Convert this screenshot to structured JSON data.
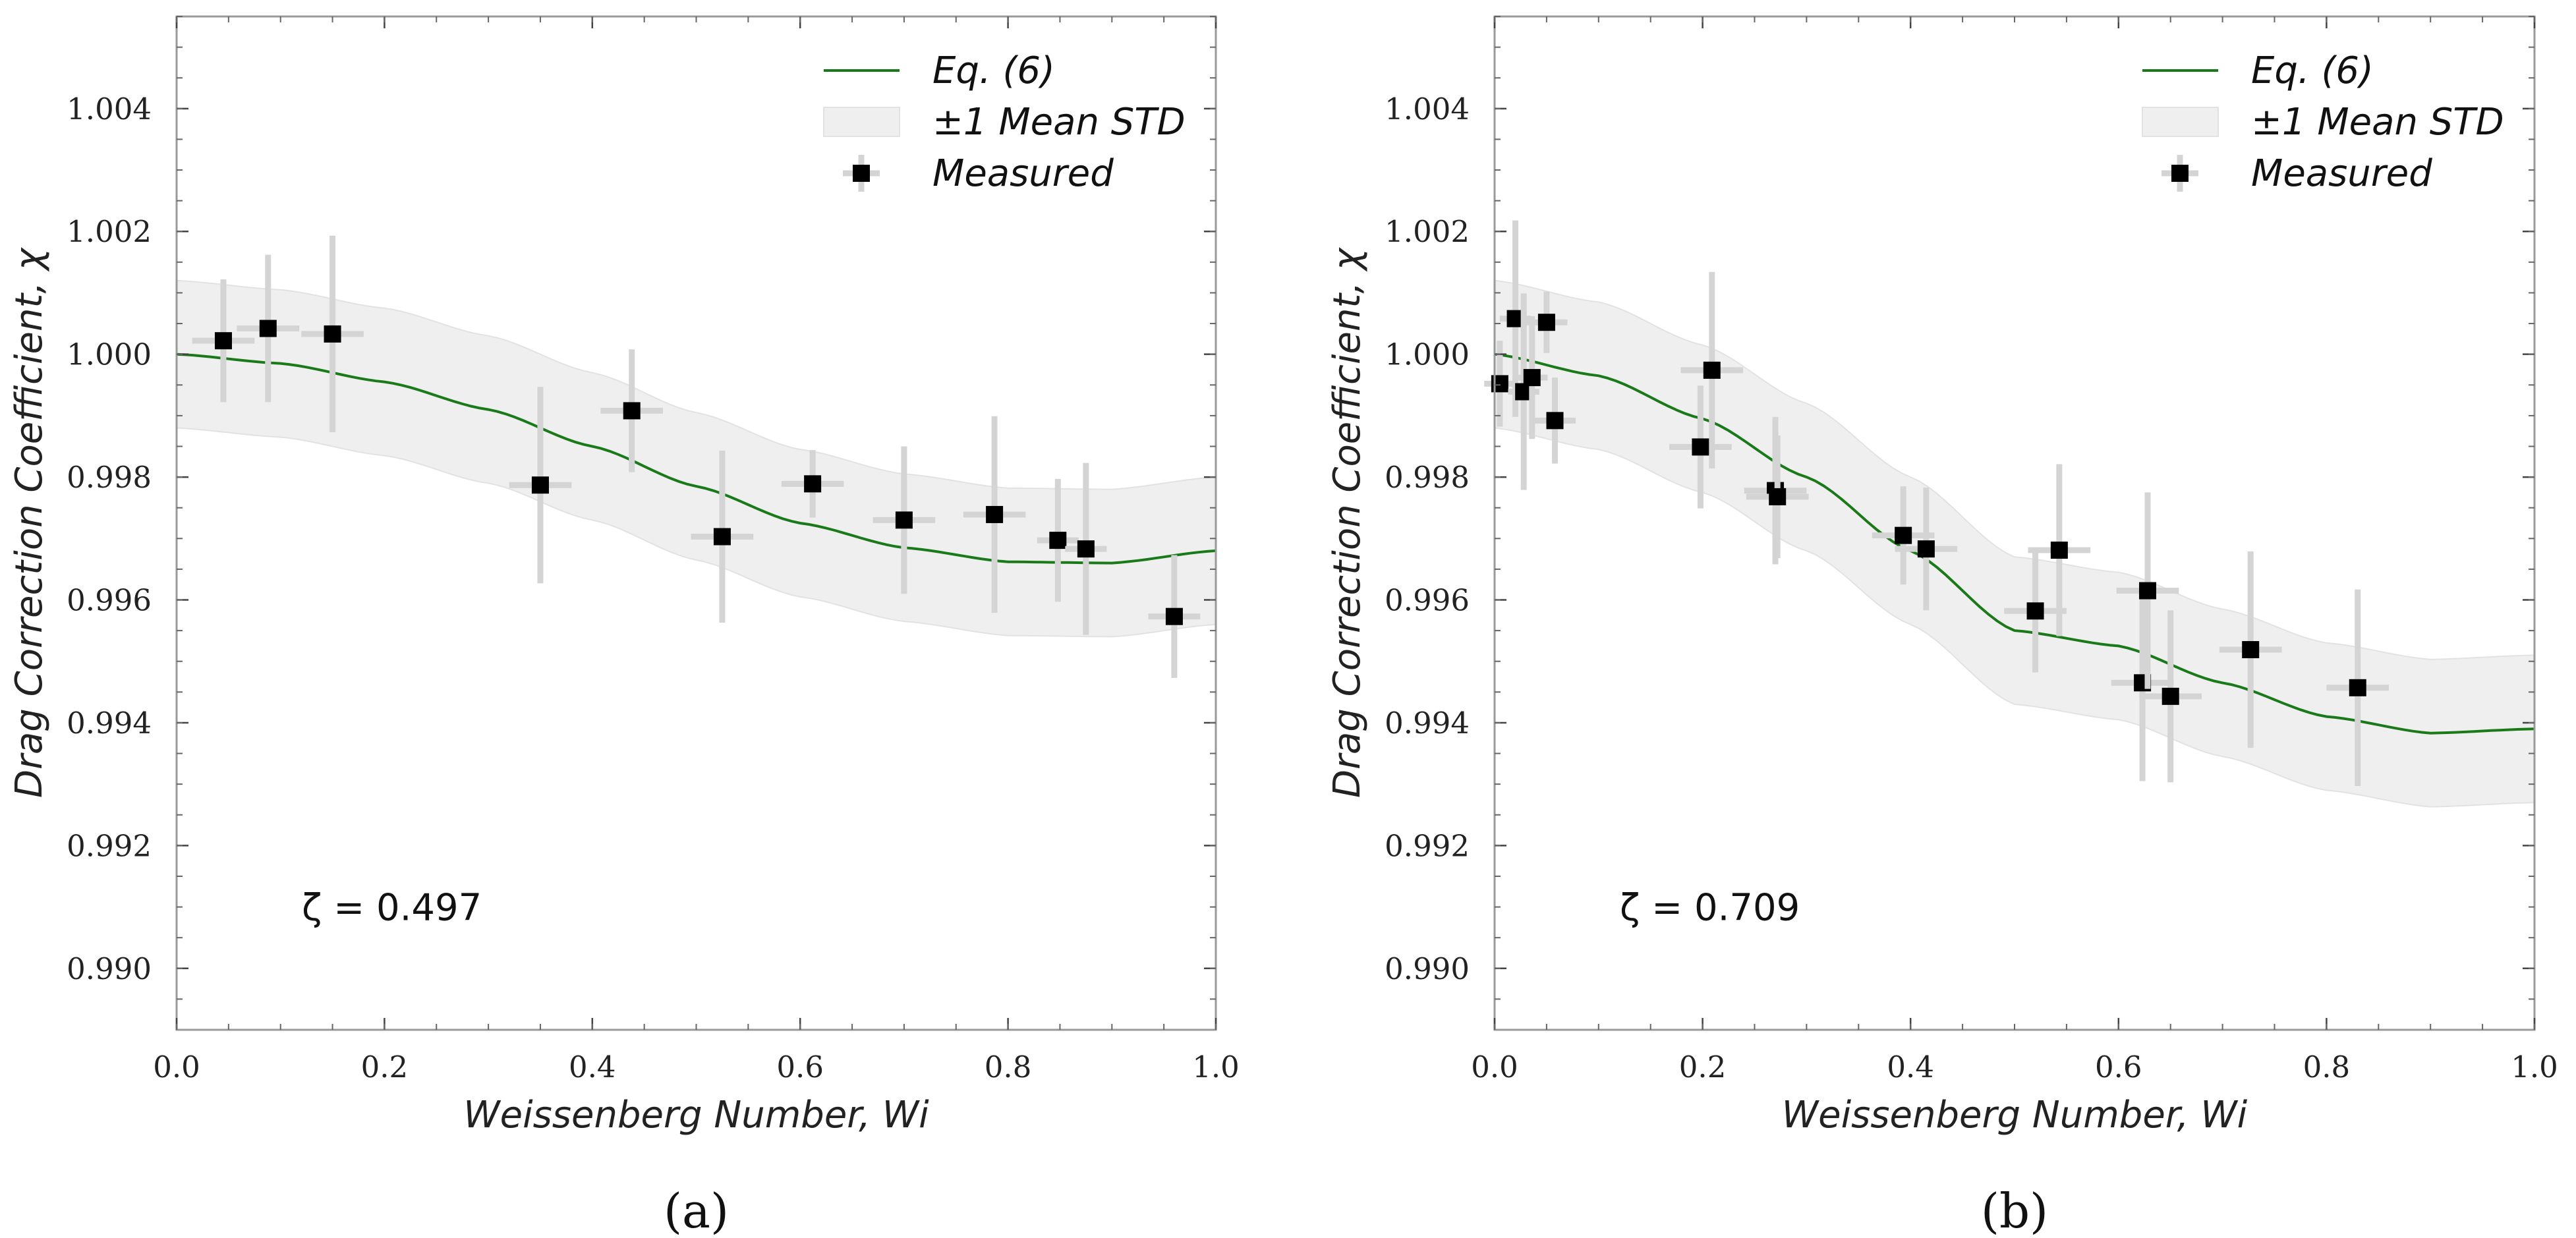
{
  "chart_data": [
    {
      "type": "line+scatter",
      "panel_label": "(a)",
      "xlabel": "Weissenberg Number, Wi",
      "ylabel": "Drag Correction Coefficient, χ",
      "xlim": [
        0.0,
        1.0
      ],
      "ylim": [
        0.989,
        1.0055
      ],
      "xticks": [
        "0.0",
        "0.2",
        "0.4",
        "0.6",
        "0.8",
        "1.0"
      ],
      "yticks": [
        "0.990",
        "0.992",
        "0.994",
        "0.996",
        "0.998",
        "1.000",
        "1.002",
        "1.004"
      ],
      "annotation": "ζ = 0.497",
      "legend": {
        "placement": "top-right",
        "entries": [
          "Eq. (6)",
          "±1 Mean STD",
          "Measured"
        ]
      },
      "colors": {
        "curve": "#1a7a1a",
        "band": "#efefef",
        "marker": "#000000",
        "errorbar": "#d4d4d4"
      },
      "curve": {
        "name": "Eq. (6)",
        "x": [
          0.0,
          0.1,
          0.2,
          0.3,
          0.4,
          0.5,
          0.6,
          0.7,
          0.8,
          0.9,
          1.0
        ],
        "y": [
          1.0,
          0.99985,
          0.99955,
          0.9991,
          0.9985,
          0.99785,
          0.99725,
          0.99685,
          0.99662,
          0.9966,
          0.9968
        ],
        "band_std": 0.0012
      },
      "measured": [
        {
          "x": 0.045,
          "y": 1.00022,
          "xerr": 0.03,
          "yerr": 0.001
        },
        {
          "x": 0.088,
          "y": 1.00042,
          "xerr": 0.03,
          "yerr": 0.0012
        },
        {
          "x": 0.15,
          "y": 1.00033,
          "xerr": 0.03,
          "yerr": 0.0016
        },
        {
          "x": 0.35,
          "y": 0.99787,
          "xerr": 0.03,
          "yerr": 0.0016
        },
        {
          "x": 0.438,
          "y": 0.99908,
          "xerr": 0.03,
          "yerr": 0.001
        },
        {
          "x": 0.525,
          "y": 0.99703,
          "xerr": 0.03,
          "yerr": 0.0014
        },
        {
          "x": 0.612,
          "y": 0.99789,
          "xerr": 0.03,
          "yerr": 0.00055
        },
        {
          "x": 0.7,
          "y": 0.9973,
          "xerr": 0.03,
          "yerr": 0.0012
        },
        {
          "x": 0.787,
          "y": 0.99739,
          "xerr": 0.03,
          "yerr": 0.0016
        },
        {
          "x": 0.848,
          "y": 0.99697,
          "xerr": 0.02,
          "yerr": 0.001
        },
        {
          "x": 0.875,
          "y": 0.99683,
          "xerr": 0.02,
          "yerr": 0.0014
        },
        {
          "x": 0.96,
          "y": 0.99573,
          "xerr": 0.025,
          "yerr": 0.001
        }
      ]
    },
    {
      "type": "line+scatter",
      "panel_label": "(b)",
      "xlabel": "Weissenberg Number, Wi",
      "ylabel": "Drag Correction Coefficient, χ",
      "xlim": [
        0.0,
        1.0
      ],
      "ylim": [
        0.989,
        1.0055
      ],
      "xticks": [
        "0.0",
        "0.2",
        "0.4",
        "0.6",
        "0.8",
        "1.0"
      ],
      "yticks": [
        "0.990",
        "0.992",
        "0.994",
        "0.996",
        "0.998",
        "1.000",
        "1.002",
        "1.004"
      ],
      "annotation": "ζ = 0.709",
      "legend": {
        "placement": "top-right",
        "entries": [
          "Eq. (6)",
          "±1 Mean STD",
          "Measured"
        ]
      },
      "colors": {
        "curve": "#1a7a1a",
        "band": "#efefef",
        "marker": "#000000",
        "errorbar": "#d4d4d4"
      },
      "curve": {
        "name": "Eq. (6)",
        "x": [
          0.0,
          0.1,
          0.2,
          0.3,
          0.4,
          0.5,
          0.6,
          0.7,
          0.8,
          0.9,
          1.0
        ],
        "y": [
          1.0,
          0.99965,
          0.99895,
          0.998,
          0.9968,
          0.9955,
          0.99525,
          0.99465,
          0.9941,
          0.99383,
          0.9939
        ],
        "band_std": 0.0012
      },
      "measured": [
        {
          "x": 0.005,
          "y": 0.99952,
          "xerr": 0.015,
          "yerr": 0.0007
        },
        {
          "x": 0.02,
          "y": 1.00058,
          "xerr": 0.015,
          "yerr": 0.0016
        },
        {
          "x": 0.028,
          "y": 0.99939,
          "xerr": 0.015,
          "yerr": 0.0016
        },
        {
          "x": 0.036,
          "y": 0.99962,
          "xerr": 0.015,
          "yerr": 0.001
        },
        {
          "x": 0.05,
          "y": 1.00052,
          "xerr": 0.02,
          "yerr": 0.0005
        },
        {
          "x": 0.058,
          "y": 0.99892,
          "xerr": 0.02,
          "yerr": 0.0007
        },
        {
          "x": 0.198,
          "y": 0.99849,
          "xerr": 0.03,
          "yerr": 0.001
        },
        {
          "x": 0.209,
          "y": 0.99974,
          "xerr": 0.03,
          "yerr": 0.0016
        },
        {
          "x": 0.27,
          "y": 0.99778,
          "xerr": 0.03,
          "yerr": 0.0012
        },
        {
          "x": 0.272,
          "y": 0.99768,
          "xerr": 0.03,
          "yerr": 0.001
        },
        {
          "x": 0.393,
          "y": 0.99705,
          "xerr": 0.03,
          "yerr": 0.0008
        },
        {
          "x": 0.415,
          "y": 0.99683,
          "xerr": 0.03,
          "yerr": 0.001
        },
        {
          "x": 0.52,
          "y": 0.99582,
          "xerr": 0.03,
          "yerr": 0.001
        },
        {
          "x": 0.543,
          "y": 0.99681,
          "xerr": 0.03,
          "yerr": 0.0014
        },
        {
          "x": 0.623,
          "y": 0.99465,
          "xerr": 0.03,
          "yerr": 0.0016
        },
        {
          "x": 0.628,
          "y": 0.99615,
          "xerr": 0.03,
          "yerr": 0.0016
        },
        {
          "x": 0.65,
          "y": 0.99443,
          "xerr": 0.03,
          "yerr": 0.0014
        },
        {
          "x": 0.727,
          "y": 0.99519,
          "xerr": 0.03,
          "yerr": 0.0016
        },
        {
          "x": 0.83,
          "y": 0.99457,
          "xerr": 0.03,
          "yerr": 0.0016
        }
      ]
    }
  ]
}
